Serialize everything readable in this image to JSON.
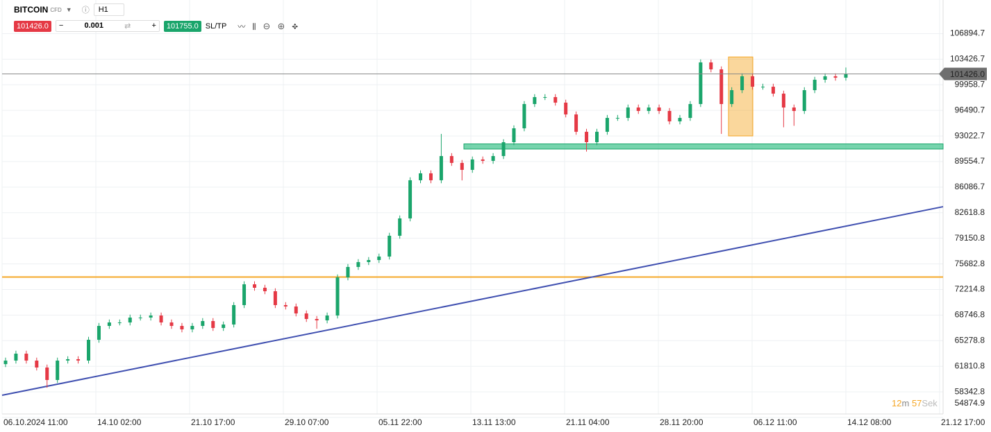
{
  "toolbar": {
    "symbol": "BITCOIN",
    "symbol_type": "CFD",
    "timeframe": "H1",
    "sell_price": "101426.0",
    "volume": "0.001",
    "buy_price": "101755.0",
    "sltp": "SL/TP"
  },
  "timer": {
    "minutes": "12",
    "minutes_unit": "m",
    "seconds": "57",
    "seconds_unit": "Sek"
  },
  "chart_data": {
    "type": "candlestick",
    "up_color": "#1aa56b",
    "down_color": "#e53945",
    "x_labels": [
      "06.10.2024 11:00",
      "14.10 02:00",
      "21.10 17:00",
      "29.10 07:00",
      "05.11 22:00",
      "13.11 13:00",
      "21.11 04:00",
      "28.11 20:00",
      "06.12 11:00",
      "14.12 08:00",
      "21.12 17:00"
    ],
    "ylim": [
      54874.9,
      111450
    ],
    "yticks": [
      106894.7,
      103426.7,
      99958.7,
      96490.7,
      93022.7,
      89554.7,
      86086.7,
      82618.8,
      79150.8,
      75682.8,
      72214.8,
      68746.8,
      65278.8,
      61810.8,
      58342.8,
      54874.9
    ],
    "grid": true,
    "open": [
      62100,
      62580,
      63520,
      62580,
      61640,
      59950,
      62580,
      62770,
      62580,
      65400,
      67280,
      67750,
      67750,
      68410,
      68410,
      68690,
      67750,
      67280,
      66810,
      67280,
      67940,
      67000,
      67470,
      70100,
      72920,
      72450,
      71980,
      70100,
      69910,
      68970,
      68220,
      68030,
      68690,
      73860,
      75270,
      75930,
      76210,
      76680,
      79500,
      81850,
      87020,
      87960,
      87020,
      90300,
      89370,
      88430,
      89840,
      89650,
      90300,
      92180,
      94060,
      97350,
      98290,
      98290,
      97540,
      95940,
      93590,
      92180,
      93590,
      95470,
      95470,
      96880,
      96410,
      96880,
      96410,
      95000,
      95470,
      97350,
      102990,
      102050,
      97350,
      99230,
      101110,
      99700,
      99700,
      98760,
      96880,
      96410,
      99230,
      100640,
      101110,
      100920
    ],
    "high": [
      62980,
      63920,
      63920,
      62980,
      62040,
      62980,
      63170,
      63170,
      65800,
      67680,
      68150,
      68150,
      68810,
      68810,
      69090,
      69090,
      68150,
      67680,
      67680,
      68340,
      68340,
      67870,
      70500,
      73320,
      73320,
      72850,
      72380,
      70500,
      70310,
      69370,
      68620,
      69090,
      74260,
      75670,
      76330,
      76610,
      77080,
      79900,
      82250,
      87420,
      88360,
      88360,
      93300,
      90700,
      89770,
      90240,
      90240,
      90700,
      92580,
      94460,
      97750,
      98690,
      98690,
      98690,
      97940,
      96340,
      93990,
      93990,
      95870,
      95870,
      97280,
      97280,
      97280,
      97280,
      96810,
      95870,
      97750,
      103400,
      103390,
      102450,
      99630,
      101510,
      101510,
      100100,
      100100,
      99160,
      97280,
      99630,
      101040,
      101510,
      101510,
      102300
    ],
    "low": [
      61700,
      62180,
      62180,
      61240,
      58900,
      59550,
      62180,
      62180,
      62180,
      65000,
      66880,
      67350,
      67350,
      68010,
      68010,
      67350,
      66880,
      66410,
      66410,
      66880,
      66600,
      66600,
      67070,
      69700,
      72050,
      71580,
      69700,
      69510,
      68570,
      67820,
      66900,
      67630,
      68290,
      73460,
      74870,
      75530,
      75810,
      76280,
      79100,
      81450,
      86620,
      86620,
      86620,
      88970,
      87000,
      88030,
      89250,
      89250,
      89900,
      91780,
      93660,
      96950,
      97890,
      97140,
      95540,
      93190,
      90900,
      91780,
      93190,
      95070,
      95070,
      96010,
      96010,
      96010,
      94600,
      94600,
      95070,
      96950,
      101650,
      93300,
      96950,
      98830,
      99300,
      99300,
      98360,
      94200,
      94400,
      96010,
      98830,
      100240,
      100520,
      100520
    ],
    "close": [
      62580,
      63520,
      62580,
      61640,
      59950,
      62580,
      62770,
      62580,
      65400,
      67280,
      67750,
      67750,
      68410,
      68410,
      68690,
      67750,
      67280,
      66810,
      67280,
      67940,
      67000,
      67470,
      70100,
      72920,
      72450,
      71980,
      70100,
      69910,
      68970,
      68220,
      68030,
      68690,
      73860,
      75270,
      75930,
      76210,
      76680,
      79500,
      81850,
      87020,
      87960,
      87020,
      90300,
      89370,
      88430,
      89840,
      89650,
      90300,
      92180,
      94060,
      97350,
      98290,
      98290,
      97540,
      95940,
      93590,
      92180,
      93590,
      95470,
      95470,
      96880,
      96410,
      96880,
      96410,
      95000,
      95470,
      97350,
      102990,
      102050,
      97350,
      99230,
      101110,
      99700,
      99700,
      98760,
      96880,
      96410,
      99230,
      100640,
      101110,
      100920,
      101426
    ],
    "current_price": {
      "value": 101426,
      "label": "101426.0"
    },
    "horizontal_line": {
      "value": 73900,
      "color": "#f5a623"
    },
    "trend_line": {
      "start": 57880,
      "end": 83440,
      "color": "#3f4fb0"
    },
    "support_zone": {
      "low": 91250,
      "high": 91950,
      "color": "#3cc28a"
    },
    "box": {
      "low": 93030,
      "high": 103730,
      "color": "#f5a623"
    }
  }
}
